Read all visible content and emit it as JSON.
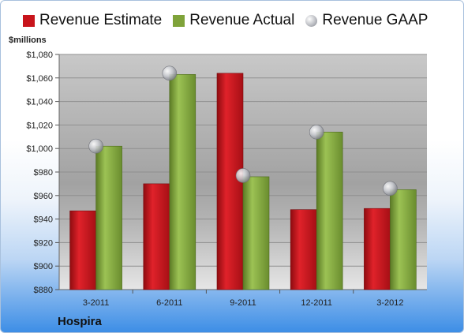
{
  "colors": {
    "estimate": "#c8141b",
    "actual": "#7fa33a",
    "gaap": "#b7b9bf"
  },
  "legend": {
    "estimate": "Revenue Estimate",
    "actual": "Revenue Actual",
    "gaap": "Revenue GAAP"
  },
  "company": "Hospira",
  "chart_data": {
    "type": "bar",
    "ylabel": "$millions",
    "ylim": [
      880,
      1080
    ],
    "yticks": [
      "$880",
      "$900",
      "$920",
      "$940",
      "$960",
      "$980",
      "$1,000",
      "$1,020",
      "$1,040",
      "$1,060",
      "$1,080"
    ],
    "categories": [
      "3-2011",
      "6-2011",
      "9-2011",
      "12-2011",
      "3-2012"
    ],
    "series": [
      {
        "name": "Revenue Estimate",
        "type": "bar",
        "values": [
          947,
          970,
          1064,
          948,
          949
        ]
      },
      {
        "name": "Revenue Actual",
        "type": "bar",
        "values": [
          1002,
          1063,
          976,
          1014,
          965
        ]
      },
      {
        "name": "Revenue GAAP",
        "type": "scatter",
        "values": [
          1002,
          1064,
          977,
          1014,
          966
        ]
      }
    ],
    "grid": true,
    "legend_position": "top"
  }
}
